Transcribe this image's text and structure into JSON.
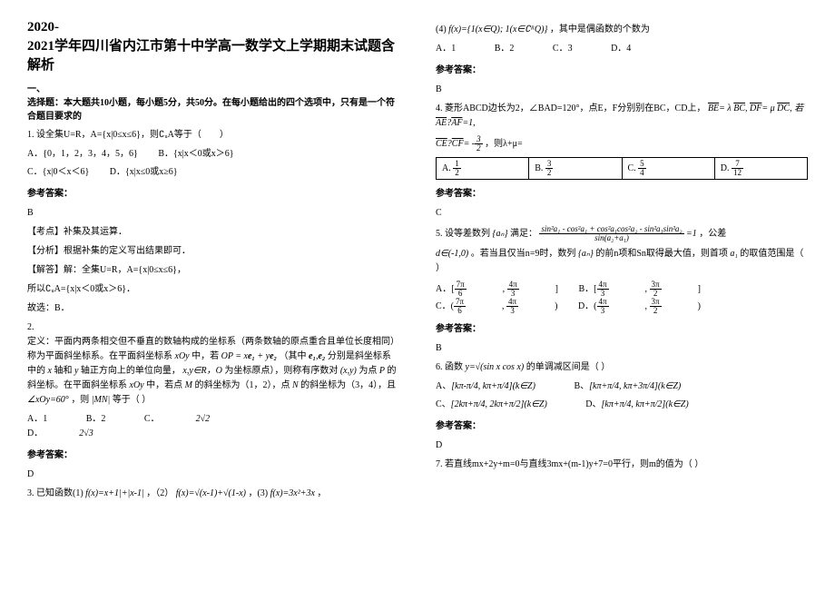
{
  "title_lines": [
    "2020-",
    "2021学年四川省内江市第十中学高一数学文上学期期末试题含解析"
  ],
  "section1_head": "一、\n选择题：本大题共10小题，每小题5分，共50分。在每小题给出的四个选项中，只有是一个符合题目要求的",
  "q1": {
    "text": "1. 设全集U=R，A={x|0≤x≤6}，则∁ᵤA等于（　　）",
    "opts": [
      "A．{0，1，2，3，4，5，6}",
      "B．{x|x＜0或x＞6}",
      "C．{x|0＜x＜6}",
      "D．{x|x≤0或x≥6}"
    ],
    "ans_label": "参考答案：",
    "ans": "B",
    "exp1": "【考点】补集及其运算．",
    "exp2": "【分析】根据补集的定义写出结果即可．",
    "exp3": "【解答】解：全集U=R，A={x|0≤x≤6}，",
    "exp4": "所以∁ᵤA={x|x＜0或x＞6}．",
    "exp5": "故选：B．"
  },
  "q2": {
    "text1": "2.\n定义：平面内两条相交但不垂直的数轴构成的坐标系（两条数轴的原点重合且单位长度相同）称为平面斜坐标系。在平面斜坐标系",
    "text2": "中，若",
    "text3": "（其中",
    "text4": "分别是斜坐标系中的",
    "text5": "轴和",
    "text6": "轴正方向上的单位向量，",
    "text7": "为坐标原点），则称有序数对",
    "text8": "为点",
    "text9": "的斜坐标。在平面斜坐标系",
    "text10": "中，若点",
    "text11": "的斜坐标为（1，2），点",
    "text12": "的斜坐标为（3，4），且",
    "text13": "，则",
    "text14": "等于（  ）",
    "opts": [
      "A．1",
      "B．2",
      "C．",
      "D．",
      "2√2",
      "2√3"
    ],
    "ans_label": "参考答案：",
    "ans": "D"
  },
  "q3": {
    "text": "3. 已知函数(1)",
    "f1": "f(x)=x+1|+|x-1|",
    "sep1": "，（2）",
    "f2": "f(x)=√(x-1)+√(1-x)",
    "sep2": "，(3)",
    "f3": "f(x)=3x²+3x",
    "sep3": "，"
  },
  "q4": {
    "pre": "(4)",
    "expr": "f(x)={1(x∈Q); 1(x∈∁ᴿQ)}",
    "tail": "，其中是偶函数的个数为",
    "opts": [
      "A．1",
      "B．2",
      "C．3",
      "D．4"
    ],
    "ans_label": "参考答案：",
    "ans": "B"
  },
  "q5": {
    "text1": "4. 菱形ABCD边长为2，∠BAD=120°，点E，F分别别在BC，CD上，",
    "rel": "BE=λBC, DF=μDC, 若AE·AF=1,",
    "ce": "CE·CF= -3/2",
    "tail": "，则λ+μ=",
    "cells": [
      "A. 1/2",
      "B. 3/2",
      "C. 5/4",
      "D. 7/12"
    ],
    "ans_label": "参考答案：",
    "ans": "C"
  },
  "q6": {
    "text1": "5. 设等差数列",
    "frac_expr": "sin²a₁ - cos²a₁ + cos²a₁cos²a₂ - sin²a₁sin²a₂",
    "frac_denom": "sin(a₂+a₁)",
    "eq": "=1",
    "text2": "满足：",
    "text3": "，公差",
    "d_range": "d∈(-1,0)",
    "text4": "。若当且仅当n=9时，数列",
    "an": "{aₙ}",
    "text5": "的前n项和Sn取得最大值，则首项",
    "a1": "a₁",
    "text6": "的取值范围是（  ）",
    "opts_a": "7π/6 4π/3",
    "opts_b": "4π/3 3π/2",
    "opts_c": "(7π/6, 4π/3)",
    "opts_d": "(4π/3, 3π/2)",
    "ans_label": "参考答案：",
    "ans": "B"
  },
  "q7": {
    "text": "6. 函数",
    "fn": "y=√(sin x cos x)",
    "tail": "的单调减区间是（  ）",
    "opt_a": "[kπ-π/4, kπ+π/4](k∈Z)",
    "opt_b": "[kπ+π/4, kπ+3π/4](k∈Z)",
    "opt_c": "[2kπ+π/4, 2kπ+π/2](k∈Z)",
    "opt_d": "[kπ+π/4, kπ+π/2](k∈Z)",
    "ans_label": "参考答案：",
    "ans": "D"
  },
  "q8": {
    "text": "7. 若直线mx+2y+m=0与直线3mx+(m-1)y+7=0平行，则m的值为（  ）"
  },
  "colors": {
    "text": "#000000",
    "bg": "#ffffff",
    "border": "#000000"
  }
}
